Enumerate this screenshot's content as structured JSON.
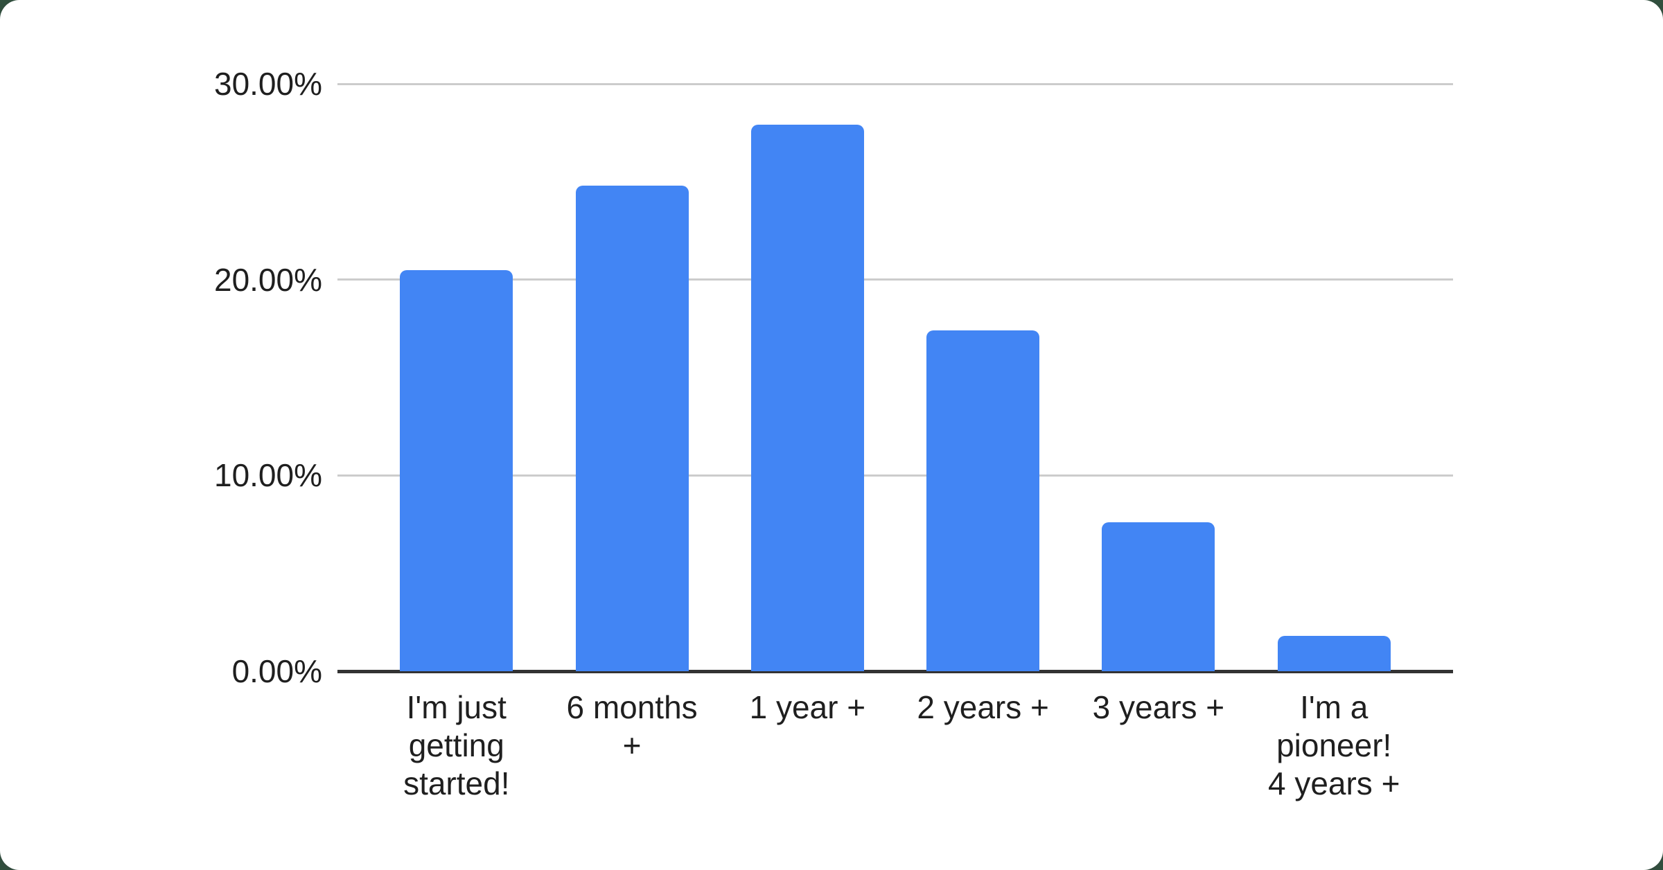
{
  "page": {
    "background_color": "#31503e",
    "card_color": "#ffffff"
  },
  "chart_data": {
    "type": "bar",
    "title": "",
    "xlabel": "",
    "ylabel": "",
    "categories": [
      "I'm just getting started!",
      "6 months +",
      "1 year +",
      "2 years +",
      "3 years +",
      "I'm a pioneer! 4 years +"
    ],
    "category_lines": [
      [
        "I'm just",
        "getting",
        "started!"
      ],
      [
        "6 months",
        "+"
      ],
      [
        "1 year +"
      ],
      [
        "2 years +"
      ],
      [
        "3 years +"
      ],
      [
        "I'm a",
        "pioneer!",
        "4 years +"
      ]
    ],
    "values": [
      20.5,
      24.8,
      27.9,
      17.4,
      7.6,
      1.8
    ],
    "unit": "%",
    "ylim": [
      0,
      30
    ],
    "y_ticks": [
      "0.00%",
      "10.00%",
      "20.00%",
      "30.00%"
    ],
    "y_tick_values": [
      0,
      10,
      20,
      30
    ],
    "grid": true,
    "legend": "none",
    "bar_color": "#4285f4",
    "gridline_color": "#cccccc",
    "axis_line_color": "#333333",
    "label_color": "#1f1f1f"
  }
}
